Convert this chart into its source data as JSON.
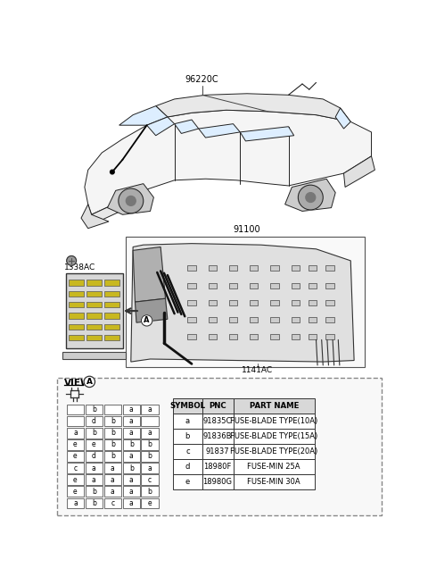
{
  "bg_color": "#ffffff",
  "car_label": "96220C",
  "wiring_label": "91100",
  "fuse_box_label": "1338AC",
  "connector_label": "1141AC",
  "table_headers": [
    "SYMBOL",
    "PNC",
    "PART NAME"
  ],
  "table_rows": [
    [
      "a",
      "91835C",
      "FUSE-BLADE TYPE(10A)"
    ],
    [
      "b",
      "91836B",
      "FUSE-BLADE TYPE(15A)"
    ],
    [
      "c",
      "91837",
      "FUSE-BLADE TYPE(20A)"
    ],
    [
      "d",
      "18980F",
      "FUSE-MIN 25A"
    ],
    [
      "e",
      "18980G",
      "FUSE-MIN 30A"
    ]
  ],
  "fuse_grid": [
    [
      " ",
      "b",
      " ",
      "a",
      "a"
    ],
    [
      " ",
      "d",
      "b",
      "a",
      " "
    ],
    [
      "a",
      "b",
      "b",
      "a",
      "a"
    ],
    [
      "e",
      "e",
      "b",
      "b",
      "b"
    ],
    [
      "e",
      "d",
      "b",
      "a",
      "b"
    ],
    [
      "c",
      "a",
      "a",
      "b",
      "a"
    ],
    [
      "e",
      "a",
      "a",
      "a",
      "c"
    ],
    [
      "e",
      "b",
      "a",
      "a",
      "b"
    ],
    [
      "a",
      "b",
      "c",
      "a",
      "e"
    ]
  ],
  "line_color": "#222222",
  "dashed_border_color": "#888888"
}
